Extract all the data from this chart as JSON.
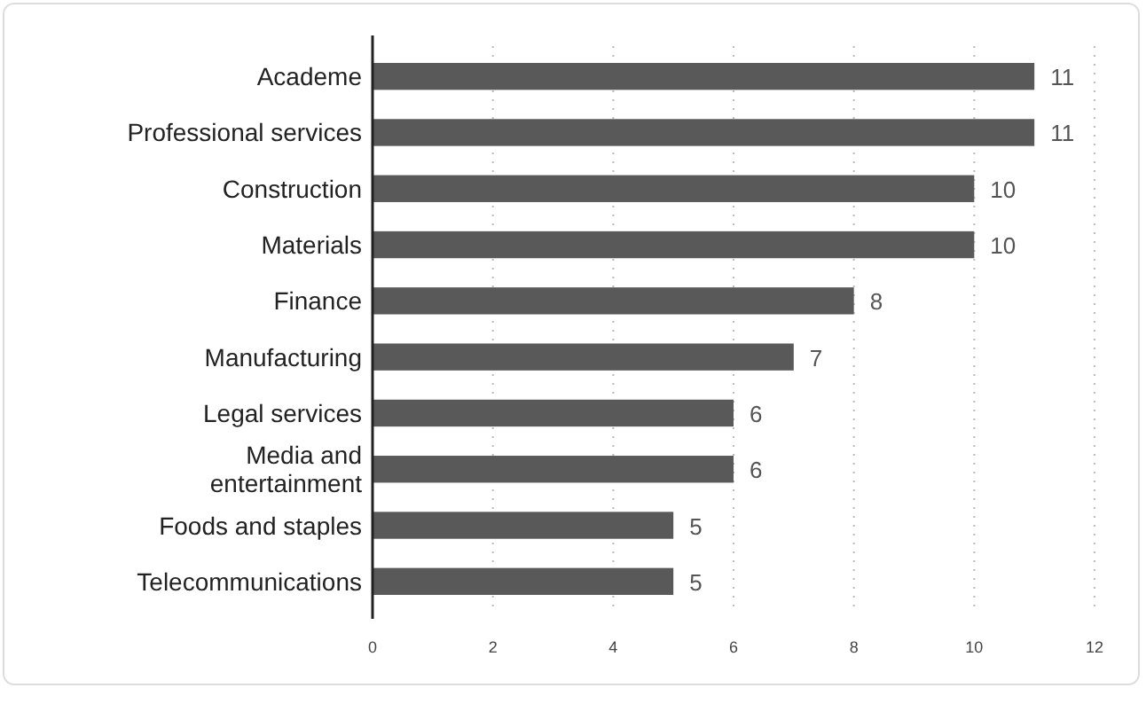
{
  "chart_data": {
    "type": "bar",
    "orientation": "horizontal",
    "categories": [
      "Academe",
      "Professional services",
      "Construction",
      "Materials",
      "Finance",
      "Manufacturing",
      "Legal services",
      "Media and entertainment",
      "Foods and staples",
      "Telecommunications"
    ],
    "values": [
      11,
      11,
      10,
      10,
      8,
      7,
      6,
      6,
      5,
      5
    ],
    "color": "#595959",
    "xlim": [
      0,
      12
    ],
    "xticks": [
      0,
      2,
      4,
      6,
      8,
      10,
      12
    ],
    "grid": "x",
    "data_labels": true
  }
}
